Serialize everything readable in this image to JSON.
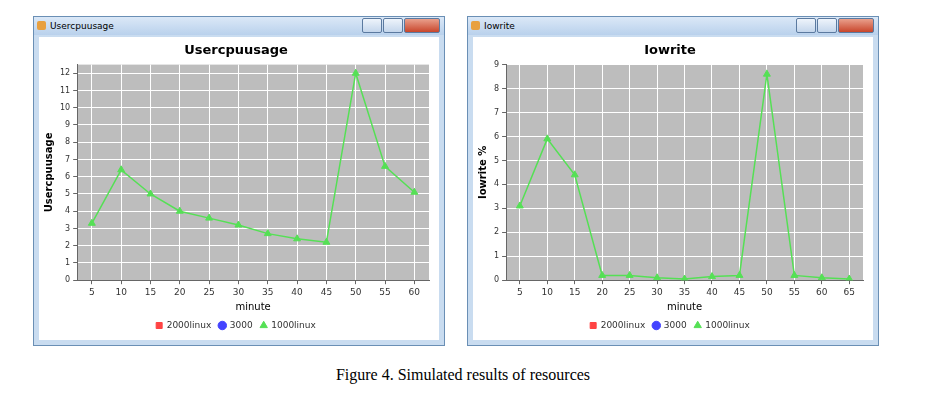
{
  "windows": [
    "Usercpuusage",
    "Iowrite"
  ],
  "caption": "Figure 4. Simulated results of resources",
  "chart_data": [
    {
      "type": "line",
      "title": "Usercpuusage",
      "x_label": "minute",
      "y_label": "Usercpuusage",
      "x": [
        5,
        10,
        15,
        20,
        25,
        30,
        35,
        40,
        45,
        50,
        55,
        60
      ],
      "xlim": [
        2.5,
        62.5
      ],
      "xticks": [
        5,
        10,
        15,
        20,
        25,
        30,
        35,
        40,
        45,
        50,
        55,
        60
      ],
      "ylim": [
        0,
        12.5
      ],
      "yticks": [
        0,
        1,
        2,
        3,
        4,
        5,
        6,
        7,
        8,
        9,
        10,
        11,
        12
      ],
      "grid": true,
      "legend": "bottom",
      "series": [
        {
          "name": "2000linux",
          "color": "#ff4444",
          "marker": "rect",
          "line_style": "solid",
          "values": [
            null,
            null,
            null,
            null,
            null,
            null,
            null,
            null,
            null,
            null,
            null,
            null
          ]
        },
        {
          "name": "3000",
          "color": "#4444ff",
          "marker": "circle",
          "line_style": "solid",
          "values": [
            null,
            null,
            null,
            null,
            null,
            null,
            null,
            null,
            null,
            null,
            null,
            null
          ]
        },
        {
          "name": "1000linux",
          "color": "#55e055",
          "marker": "triangle",
          "line_style": "solid",
          "values": [
            3.3,
            6.4,
            5.0,
            4.0,
            3.6,
            3.2,
            2.7,
            2.4,
            2.2,
            12.0,
            6.6,
            5.1
          ]
        }
      ]
    },
    {
      "type": "line",
      "title": "Iowrite",
      "x_label": "minute",
      "y_label": "Iowrite %",
      "x": [
        5,
        10,
        15,
        20,
        25,
        30,
        35,
        40,
        45,
        50,
        55,
        60,
        65
      ],
      "xlim": [
        2.5,
        67.5
      ],
      "xticks": [
        5,
        10,
        15,
        20,
        25,
        30,
        35,
        40,
        45,
        50,
        55,
        60,
        65
      ],
      "ylim": [
        0,
        9
      ],
      "yticks": [
        0,
        1,
        2,
        3,
        4,
        5,
        6,
        7,
        8,
        9
      ],
      "grid": true,
      "legend": "bottom",
      "series": [
        {
          "name": "2000linux",
          "color": "#ff4444",
          "marker": "rect",
          "line_style": "solid",
          "values": [
            null,
            null,
            null,
            null,
            null,
            null,
            null,
            null,
            null,
            null,
            null,
            null,
            null
          ]
        },
        {
          "name": "3000",
          "color": "#4444ff",
          "marker": "circle",
          "line_style": "solid",
          "values": [
            null,
            null,
            null,
            null,
            null,
            null,
            null,
            null,
            null,
            null,
            null,
            null,
            null
          ]
        },
        {
          "name": "1000linux",
          "color": "#55e055",
          "marker": "triangle",
          "line_style": "solid",
          "values": [
            3.1,
            5.9,
            4.4,
            0.2,
            0.2,
            0.1,
            0.05,
            0.15,
            0.2,
            8.6,
            0.2,
            0.1,
            0.05
          ]
        }
      ]
    }
  ]
}
